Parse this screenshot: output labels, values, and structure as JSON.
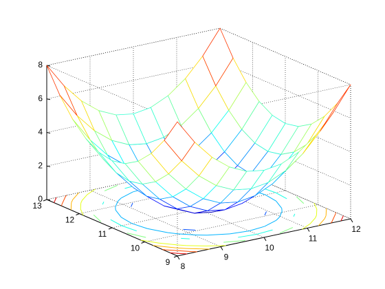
{
  "chart_data": {
    "type": "meshc",
    "colormap": "jet",
    "grid": true,
    "x": [
      8,
      8.4,
      8.8,
      9.2,
      9.6,
      10,
      10.4,
      10.8,
      11.2,
      11.6,
      12
    ],
    "y": [
      9,
      9.4,
      9.8,
      10.2,
      10.6,
      11,
      11.4,
      11.8,
      12.2,
      12.6,
      13
    ],
    "z": [
      [
        8,
        6.56,
        5.44,
        4.64,
        4.16,
        4,
        4.16,
        4.64,
        5.44,
        6.56,
        8
      ],
      [
        6.56,
        5.12,
        4,
        3.2,
        2.72,
        2.56,
        2.72,
        3.2,
        4,
        5.12,
        6.56
      ],
      [
        5.44,
        4,
        2.88,
        2.08,
        1.6,
        1.44,
        1.6,
        2.08,
        2.88,
        4,
        5.44
      ],
      [
        4.64,
        3.2,
        2.08,
        1.28,
        0.8,
        0.64,
        0.8,
        1.28,
        2.08,
        3.2,
        4.64
      ],
      [
        4.16,
        2.72,
        1.6,
        0.8,
        0.32,
        0.16,
        0.32,
        0.8,
        1.6,
        2.72,
        4.16
      ],
      [
        4,
        2.56,
        1.44,
        0.64,
        0.16,
        0,
        0.16,
        0.64,
        1.44,
        2.56,
        4
      ],
      [
        4.16,
        2.72,
        1.6,
        0.8,
        0.32,
        0.16,
        0.32,
        0.8,
        1.6,
        2.72,
        4.16
      ],
      [
        4.64,
        3.2,
        2.08,
        1.28,
        0.8,
        0.64,
        0.8,
        1.28,
        2.08,
        3.2,
        4.64
      ],
      [
        5.44,
        4,
        2.88,
        2.08,
        1.6,
        1.44,
        1.6,
        2.08,
        2.88,
        4,
        5.44
      ],
      [
        6.56,
        5.12,
        4,
        3.2,
        2.72,
        2.56,
        2.72,
        3.2,
        4,
        5.12,
        6.56
      ],
      [
        8,
        6.56,
        5.44,
        4.64,
        4.16,
        4,
        4.16,
        4.64,
        5.44,
        6.56,
        8
      ]
    ],
    "contour_levels": [
      0.8,
      1.6,
      2.4,
      3.2,
      4,
      4.8,
      5.6,
      6.4,
      7.2
    ],
    "xlim": [
      8,
      12
    ],
    "ylim": [
      9,
      13
    ],
    "zlim": [
      0,
      8
    ],
    "xticks": [
      8,
      9,
      10,
      11,
      12
    ],
    "yticks": [
      9,
      10,
      11,
      12,
      13
    ],
    "zticks": [
      0,
      2,
      4,
      6,
      8
    ]
  }
}
